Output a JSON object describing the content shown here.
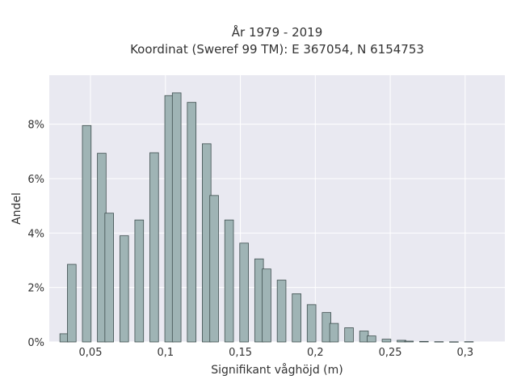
{
  "chart_data": {
    "type": "bar",
    "title": "År 1979 - 2019",
    "subtitle": "Koordinat (Sweref 99 TM): E 367054, N 6154753",
    "xlabel": "Signifikant våghöjd (m)",
    "ylabel": "Andel",
    "xlim": [
      0.0225,
      0.3265
    ],
    "ylim": [
      0,
      9.8
    ],
    "x_ticks": [
      0.05,
      0.1,
      0.15,
      0.2,
      0.25,
      0.3
    ],
    "x_tick_labels": [
      "0,05",
      "0,1",
      "0,15",
      "0,2",
      "0,25",
      "0,3"
    ],
    "y_ticks": [
      0,
      2,
      4,
      6,
      8
    ],
    "y_tick_labels": [
      "0%",
      "2%",
      "4%",
      "6%",
      "8%"
    ],
    "grid": true,
    "colors": {
      "bar_fill": "#9fb4b5",
      "bar_stroke": "#3f4f4f",
      "plot_bg": "#e9e9f1",
      "grid": "#ffffff"
    },
    "bin_width": 0.0058,
    "x": [
      0.0325,
      0.0375,
      0.0475,
      0.0575,
      0.0625,
      0.0725,
      0.0825,
      0.0925,
      0.1025,
      0.1075,
      0.1175,
      0.1275,
      0.1325,
      0.1425,
      0.1525,
      0.1625,
      0.1675,
      0.1775,
      0.1875,
      0.1975,
      0.2075,
      0.2125,
      0.2225,
      0.2325,
      0.2375,
      0.2475,
      0.2575,
      0.2625,
      0.2725,
      0.2825,
      0.2925,
      0.3025
    ],
    "values": [
      0.3,
      2.85,
      7.95,
      6.93,
      4.73,
      3.9,
      4.48,
      6.95,
      9.05,
      9.15,
      8.8,
      7.28,
      5.38,
      4.48,
      3.63,
      3.05,
      2.68,
      2.27,
      1.77,
      1.37,
      1.08,
      0.68,
      0.52,
      0.4,
      0.22,
      0.1,
      0.06,
      0.03,
      0.02,
      0.01,
      0.005,
      0.01
    ]
  }
}
